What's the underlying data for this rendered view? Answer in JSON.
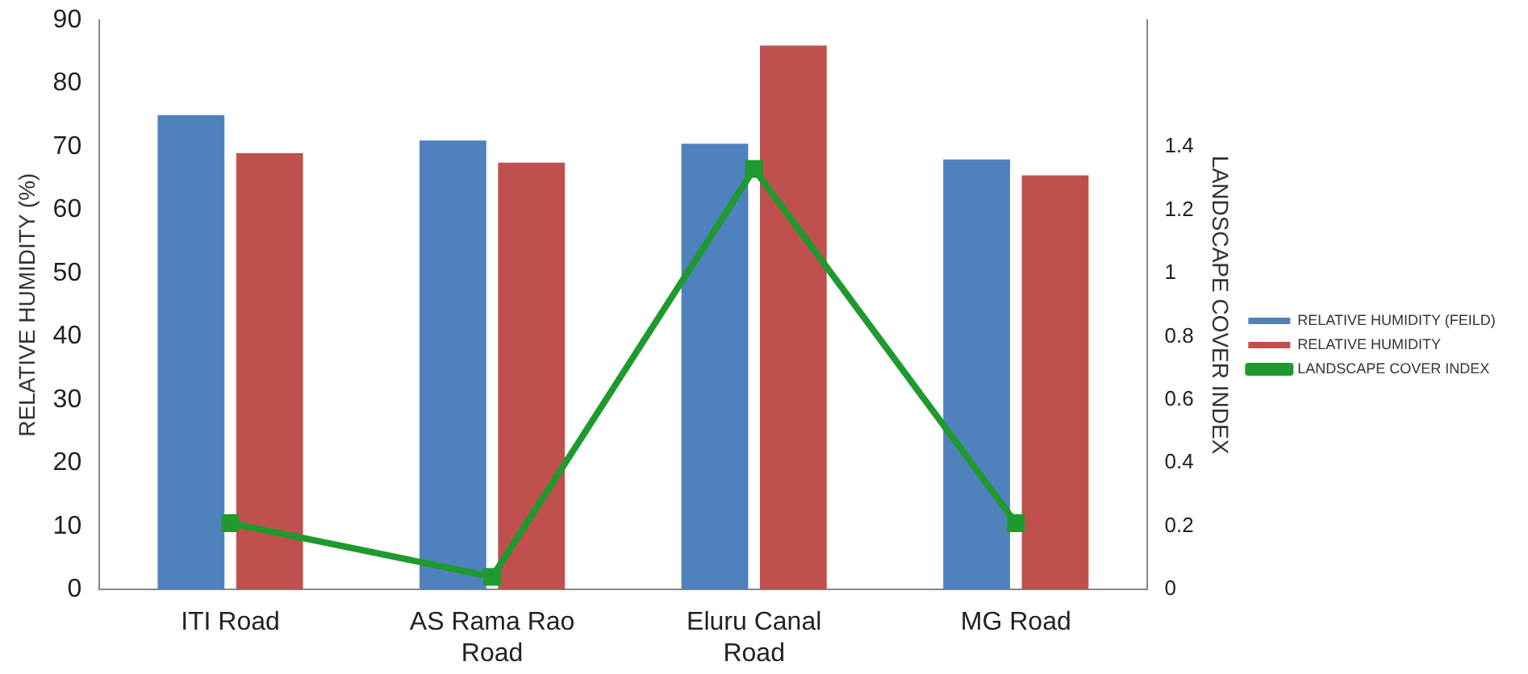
{
  "chart_data": {
    "type": "bar",
    "ylabel": "RELATIVE HUMIDITY (%)",
    "y2label": "LANDSCAPE COVER INDEX",
    "categories": [
      "ITI Road",
      "AS Rama Rao Road",
      "Eluru Canal Road",
      "MG Road"
    ],
    "series": [
      {
        "name": "RELATIVE HUMIDITY (FEILD)",
        "color": "#4f81bd",
        "values": [
          75,
          71,
          70.5,
          68
        ]
      },
      {
        "name": "RELATIVE HUMIDITY",
        "color": "#c0504d",
        "values": [
          69,
          67.5,
          86,
          65.5
        ]
      },
      {
        "name": "LANDSCAPE COVER INDEX",
        "type": "line",
        "axis": "y2",
        "color": "#1e9a2e",
        "marker": "square",
        "values": [
          0.21,
          0.04,
          1.33,
          0.21
        ]
      }
    ],
    "ylim": [
      0,
      90
    ],
    "yticks": [
      0,
      10,
      20,
      30,
      40,
      50,
      60,
      70,
      80,
      90
    ],
    "y2lim": [
      0,
      1.8
    ],
    "y2ticks": [
      0,
      0.2,
      0.4,
      0.6,
      0.8,
      1,
      1.2,
      1.4
    ],
    "grid": false,
    "legend": "right"
  }
}
